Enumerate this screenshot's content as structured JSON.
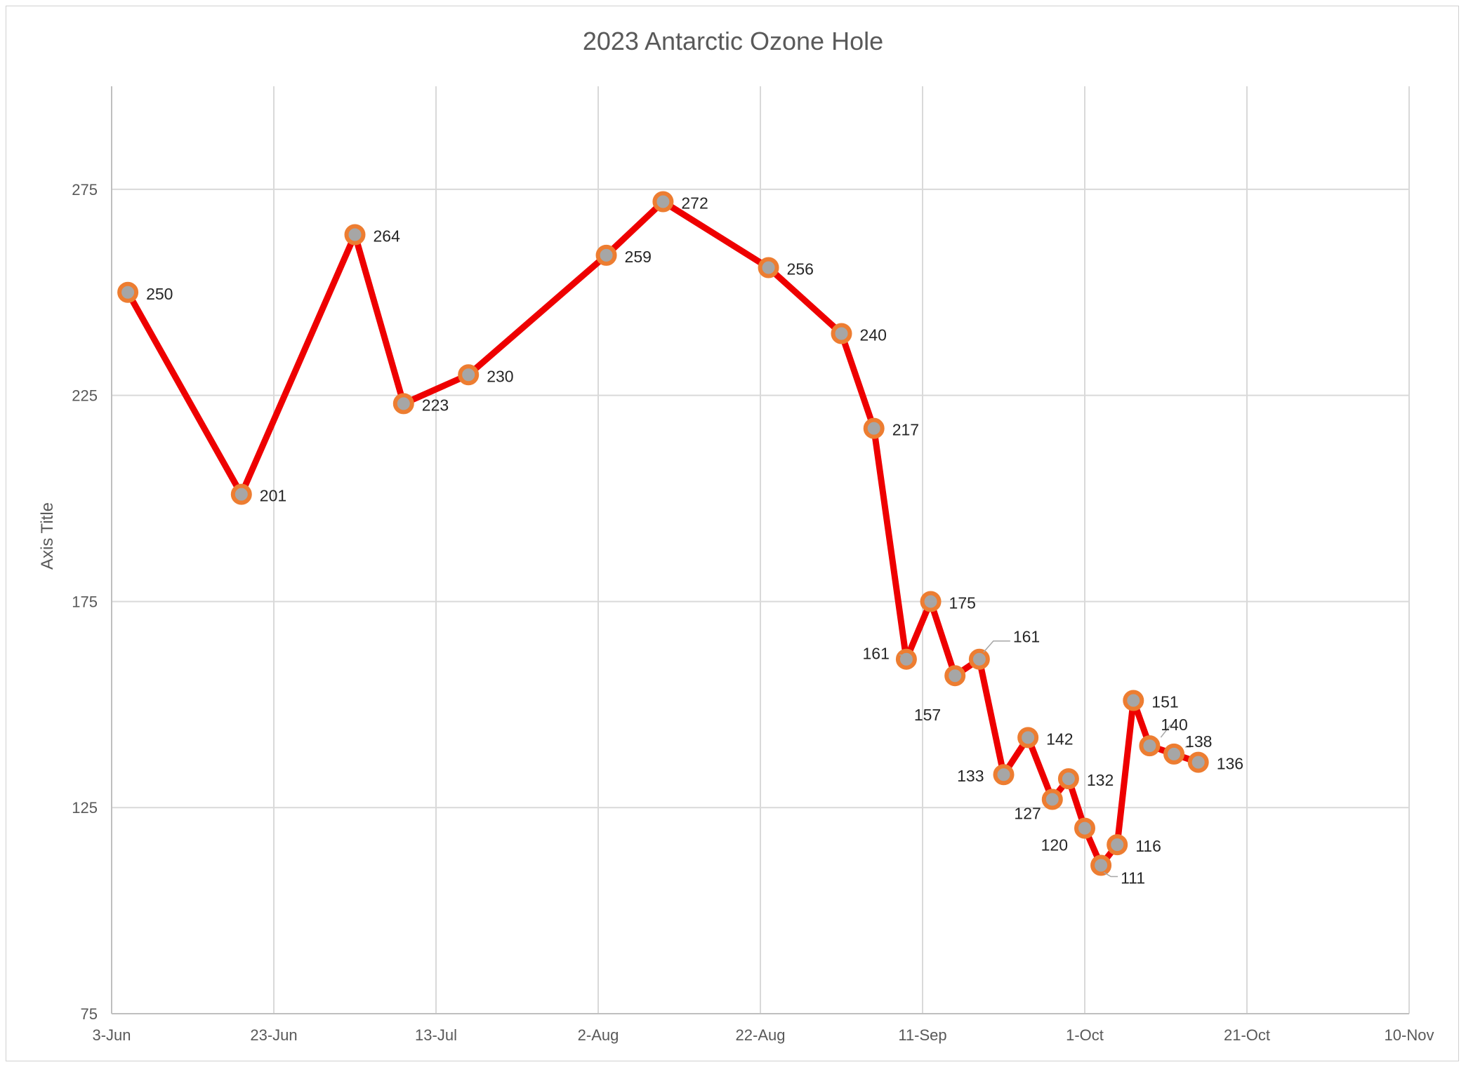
{
  "chart_data": {
    "type": "line",
    "title": "2023 Antarctic Ozone Hole",
    "xlabel": "",
    "ylabel": "Axis Title",
    "x_axis": {
      "type": "date",
      "min": "2023-06-03",
      "max": "2023-11-10",
      "tick_labels": [
        "3-Jun",
        "23-Jun",
        "13-Jul",
        "2-Aug",
        "22-Aug",
        "11-Sep",
        "1-Oct",
        "21-Oct",
        "10-Nov"
      ]
    },
    "y_axis": {
      "min": 75,
      "max": 300,
      "tick_values": [
        75,
        125,
        175,
        225,
        275
      ],
      "tick_labels": [
        "75",
        "125",
        "175",
        "225",
        "275"
      ]
    },
    "grid": true,
    "legend": "none",
    "colors": {
      "line": "#ee0000",
      "marker_fill": "#a6a6a6",
      "marker_border": "#ed7d31"
    },
    "series": [
      {
        "points": [
          {
            "x": "2023-06-05",
            "y": 250,
            "label": "250"
          },
          {
            "x": "2023-06-19",
            "y": 201,
            "label": "201"
          },
          {
            "x": "2023-07-03",
            "y": 264,
            "label": "264"
          },
          {
            "x": "2023-07-09",
            "y": 223,
            "label": "223"
          },
          {
            "x": "2023-07-17",
            "y": 230,
            "label": "230"
          },
          {
            "x": "2023-08-03",
            "y": 259,
            "label": "259"
          },
          {
            "x": "2023-08-10",
            "y": 272,
            "label": "272"
          },
          {
            "x": "2023-08-23",
            "y": 256,
            "label": "256"
          },
          {
            "x": "2023-09-01",
            "y": 240,
            "label": "240"
          },
          {
            "x": "2023-09-05",
            "y": 217,
            "label": "217"
          },
          {
            "x": "2023-09-09",
            "y": 161,
            "label": "161"
          },
          {
            "x": "2023-09-12",
            "y": 175,
            "label": "175"
          },
          {
            "x": "2023-09-15",
            "y": 157,
            "label": "157"
          },
          {
            "x": "2023-09-18",
            "y": 161,
            "label": "161"
          },
          {
            "x": "2023-09-21",
            "y": 133,
            "label": "133"
          },
          {
            "x": "2023-09-24",
            "y": 142,
            "label": "142"
          },
          {
            "x": "2023-09-27",
            "y": 127,
            "label": "127"
          },
          {
            "x": "2023-09-29",
            "y": 132,
            "label": "132"
          },
          {
            "x": "2023-10-01",
            "y": 120,
            "label": "120"
          },
          {
            "x": "2023-10-03",
            "y": 111,
            "label": "111"
          },
          {
            "x": "2023-10-05",
            "y": 116,
            "label": "116"
          },
          {
            "x": "2023-10-07",
            "y": 151,
            "label": "151"
          },
          {
            "x": "2023-10-09",
            "y": 140,
            "label": "140"
          },
          {
            "x": "2023-10-12",
            "y": 138,
            "label": "138"
          },
          {
            "x": "2023-10-15",
            "y": 136,
            "label": "136"
          }
        ]
      }
    ]
  }
}
